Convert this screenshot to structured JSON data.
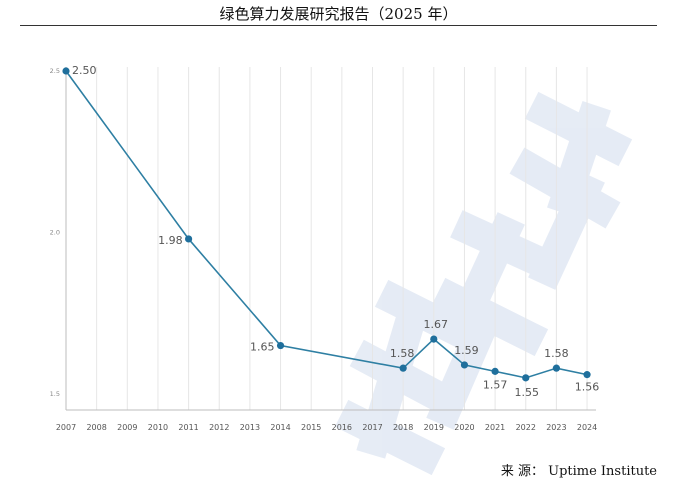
{
  "header": {
    "title": "绿色算力发展研究报告（2025 年）"
  },
  "source": {
    "label": "来 源：",
    "value": "Uptime Institute"
  },
  "colors": {
    "line": "#2e7fa3",
    "point": "#1f6f9c",
    "label": "#555555",
    "grid": "#e6e6e6",
    "axis": "#bdbdbd",
    "watermark": "#3f6cb5"
  },
  "chart_data": {
    "type": "line",
    "x": [
      "2007",
      "2008",
      "2009",
      "2010",
      "2011",
      "2012",
      "2013",
      "2014",
      "2015",
      "2016",
      "2017",
      "2018",
      "2019",
      "2020",
      "2021",
      "2022",
      "2023",
      "2024"
    ],
    "points": [
      {
        "x": "2007",
        "y": 2.5,
        "label": "2.50"
      },
      {
        "x": "2011",
        "y": 1.98,
        "label": "1.98"
      },
      {
        "x": "2014",
        "y": 1.65,
        "label": "1.65"
      },
      {
        "x": "2018",
        "y": 1.58,
        "label": "1.58"
      },
      {
        "x": "2019",
        "y": 1.67,
        "label": "1.67"
      },
      {
        "x": "2020",
        "y": 1.59,
        "label": "1.59"
      },
      {
        "x": "2021",
        "y": 1.57,
        "label": "1.57"
      },
      {
        "x": "2022",
        "y": 1.55,
        "label": "1.55"
      },
      {
        "x": "2023",
        "y": 1.58,
        "label": "1.58"
      },
      {
        "x": "2024",
        "y": 1.56,
        "label": "1.56"
      }
    ],
    "yticks": [
      "2.5",
      "2.0",
      "1.5"
    ],
    "ylim": [
      1.5,
      2.5
    ],
    "grid": "vertical"
  }
}
